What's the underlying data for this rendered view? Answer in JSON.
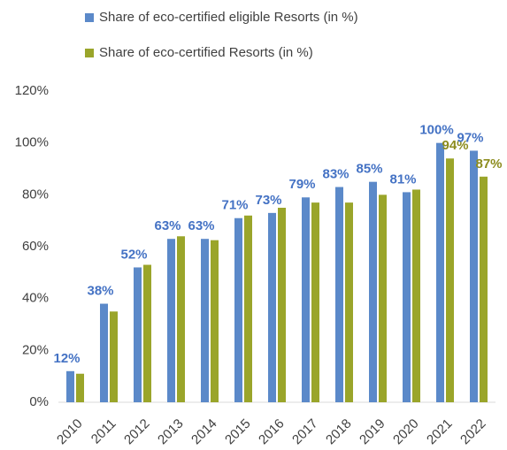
{
  "chart_data": {
    "type": "bar",
    "categories": [
      "2010",
      "2011",
      "2012",
      "2013",
      "2014",
      "2015",
      "2016",
      "2017",
      "2018",
      "2019",
      "2020",
      "2021",
      "2022"
    ],
    "series": [
      {
        "name": "Share of eco-certified eligible Resorts (in %)",
        "color": "#5b89c9",
        "label_color": "#4472c4",
        "values": [
          12,
          38,
          52,
          63,
          63,
          71,
          73,
          79,
          83,
          85,
          81,
          100,
          97
        ],
        "value_labels": [
          "12%",
          "38%",
          "52%",
          "63%",
          "63%",
          "71%",
          "73%",
          "79%",
          "83%",
          "85%",
          "81%",
          "100%",
          "97%"
        ]
      },
      {
        "name": "Share of eco-certified Resorts (in %)",
        "color": "#9aa52a",
        "label_color": "#8c8c1e",
        "values": [
          11,
          35,
          53,
          64,
          62.5,
          72,
          75,
          77,
          77,
          80,
          82,
          94,
          87
        ],
        "value_labels": [
          null,
          null,
          null,
          null,
          null,
          null,
          null,
          null,
          null,
          null,
          null,
          "94%",
          "87%"
        ]
      }
    ],
    "ylim": [
      0,
      120
    ],
    "yticks": [
      {
        "value": 0,
        "label": "0%"
      },
      {
        "value": 20,
        "label": "20%"
      },
      {
        "value": 40,
        "label": "40%"
      },
      {
        "value": 60,
        "label": "60%"
      },
      {
        "value": 80,
        "label": "80%"
      },
      {
        "value": 100,
        "label": "100%"
      },
      {
        "value": 120,
        "label": "120%"
      }
    ],
    "grid": false
  }
}
